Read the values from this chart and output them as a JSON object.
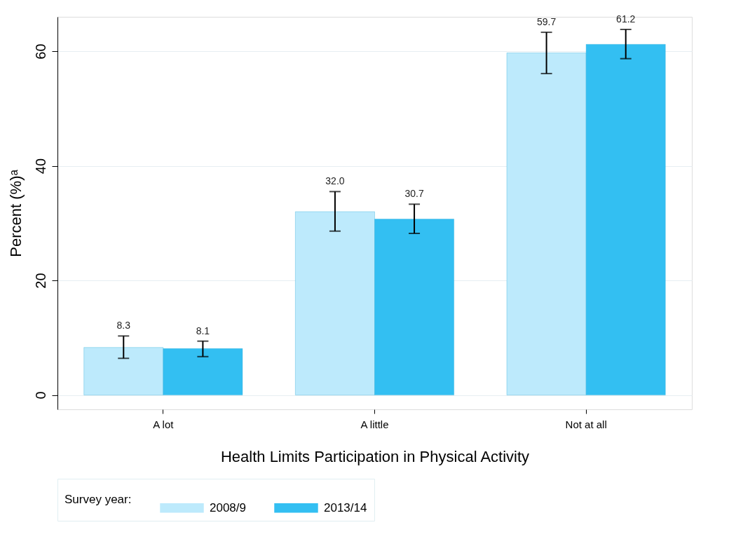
{
  "chart_data": {
    "type": "bar",
    "xlabel": "Health Limits Participation in Physical Activity",
    "ylabel": "Percent (%)ᵃ",
    "legend_title": "Survey year:",
    "categories": [
      "A lot",
      "A little",
      "Not at all"
    ],
    "series": [
      {
        "name": "2008/9",
        "color": "#bdeafc",
        "values": [
          8.3,
          32.0,
          59.7
        ],
        "value_labels": [
          "8.3",
          "32.0",
          "59.7"
        ],
        "errors": [
          [
            6.4,
            10.3
          ],
          [
            28.6,
            35.5
          ],
          [
            56.1,
            63.3
          ]
        ]
      },
      {
        "name": "2013/14",
        "color": "#33bff2",
        "values": [
          8.1,
          30.7,
          61.2
        ],
        "value_labels": [
          "8.1",
          "30.7",
          "61.2"
        ],
        "errors": [
          [
            6.7,
            9.4
          ],
          [
            28.2,
            33.3
          ],
          [
            58.7,
            63.8
          ]
        ]
      }
    ],
    "ylim": [
      -2.5,
      66
    ],
    "yticks": [
      0,
      20,
      40,
      60
    ],
    "grid": "y",
    "legend": "bottom"
  }
}
